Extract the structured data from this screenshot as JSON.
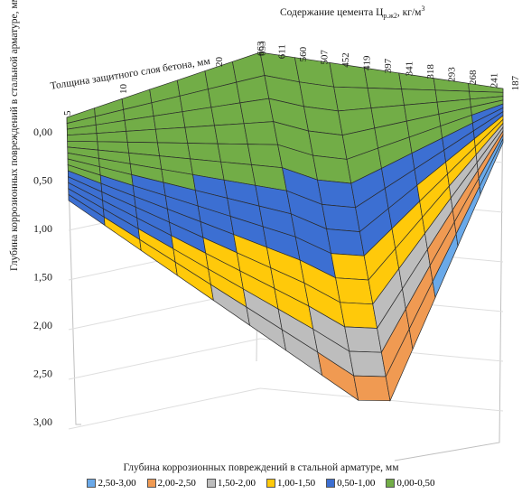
{
  "chart_data": {
    "type": "surface",
    "title": "",
    "zlabel": "Глубина коррозионных повреждений в стальной арматуре, мм",
    "cement_label": "Содержание цемента Ц",
    "cement_label_sub": "р.ж2",
    "cement_label_unit": ", кг/м",
    "cement_label_sup": "3",
    "thickness_label": "Толщина защитного слоя бетона, мм",
    "xlabel": "Глубина коррозионных повреждений в стальной арматуре, мм",
    "z_ticks": [
      "0,00",
      "0,50",
      "1,00",
      "1,50",
      "2,00",
      "2,50",
      "3,00"
    ],
    "zlim": [
      0,
      3
    ],
    "z_inverted": true,
    "cement_ticks": [
      "663",
      "611",
      "560",
      "507",
      "452",
      "419",
      "397",
      "341",
      "318",
      "293",
      "268",
      "241",
      "187"
    ],
    "cement_ticks_overlap": "653",
    "thickness_ticks": [
      "5",
      "10",
      "20"
    ],
    "legend": [
      {
        "label": "2,50-3,00",
        "color": "#6aa9e9"
      },
      {
        "label": "2,00-2,50",
        "color": "#f09a52"
      },
      {
        "label": "1,50-2,00",
        "color": "#bdbdbd"
      },
      {
        "label": "1,00-1,50",
        "color": "#ffc90a"
      },
      {
        "label": "0,50-1,00",
        "color": "#3c6fd2"
      },
      {
        "label": "0,00-0,50",
        "color": "#72ad47"
      }
    ],
    "legend_position": "bottom",
    "grid": true
  }
}
